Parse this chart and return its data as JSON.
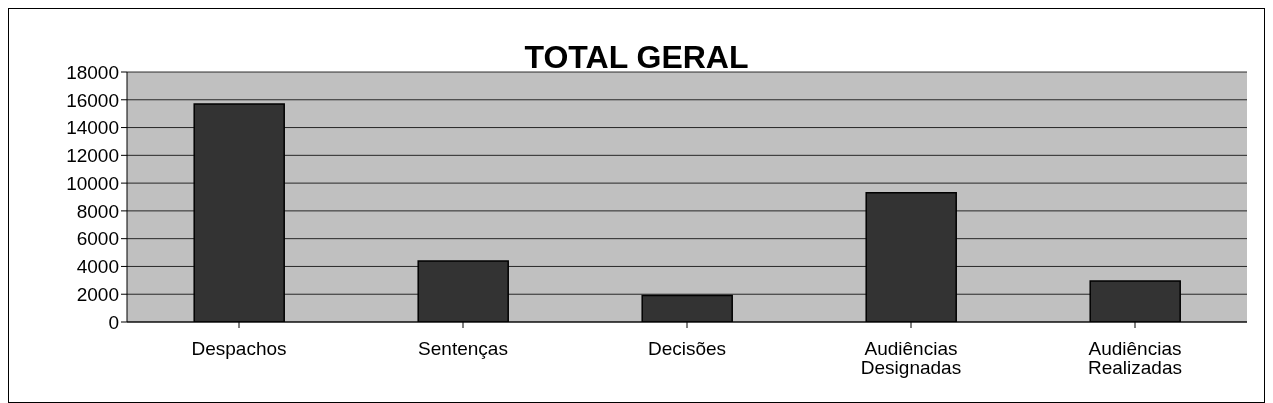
{
  "chart_data": {
    "type": "bar",
    "title": "TOTAL GERAL",
    "categories": [
      "Despachos",
      "Sentenças",
      "Decisões",
      "Audiências Designadas",
      "Audiências Realizadas"
    ],
    "values": [
      15700,
      4400,
      1900,
      9300,
      2950
    ],
    "color": "#333333",
    "ylim": [
      0,
      18000
    ],
    "yticks": [
      0,
      2000,
      4000,
      6000,
      8000,
      10000,
      12000,
      14000,
      16000,
      18000
    ],
    "grid": "y"
  }
}
